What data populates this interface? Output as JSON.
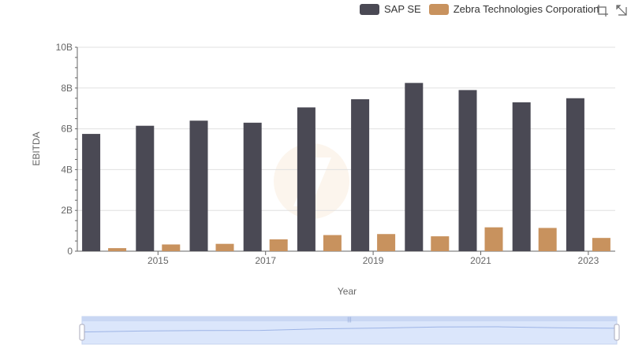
{
  "legend": {
    "items": [
      {
        "name": "SAP SE",
        "color": "#4a4954"
      },
      {
        "name": "Zebra Technologies Corporation",
        "color": "#c8925e"
      }
    ]
  },
  "toolbox": {
    "icons": [
      "zoom-icon",
      "restore-icon"
    ]
  },
  "chart_data": {
    "type": "bar",
    "categories": [
      "2014",
      "2015",
      "2016",
      "2017",
      "2018",
      "2019",
      "2020",
      "2021",
      "2022",
      "2023"
    ],
    "x_tick_labels": [
      "2015",
      "2017",
      "2019",
      "2021",
      "2023"
    ],
    "series": [
      {
        "name": "SAP SE",
        "color": "#4a4954",
        "values": [
          5.75,
          6.15,
          6.4,
          6.3,
          7.05,
          7.45,
          8.25,
          7.9,
          7.3,
          7.5
        ]
      },
      {
        "name": "Zebra Technologies Corporation",
        "color": "#c8925e",
        "values": [
          0.15,
          0.33,
          0.36,
          0.58,
          0.79,
          0.84,
          0.73,
          1.17,
          1.14,
          0.65
        ]
      }
    ],
    "y_tick_labels": [
      "0",
      "2B",
      "4B",
      "6B",
      "8B",
      "10B"
    ],
    "y_ticks": [
      0,
      2,
      4,
      6,
      8,
      10
    ],
    "ylim": [
      0,
      10
    ],
    "unit": "B",
    "xlabel": "Year",
    "ylabel": "EBITDA",
    "grid": true,
    "legend_position": "top-right",
    "data_zoom": {
      "start": 0,
      "end": 100
    }
  }
}
